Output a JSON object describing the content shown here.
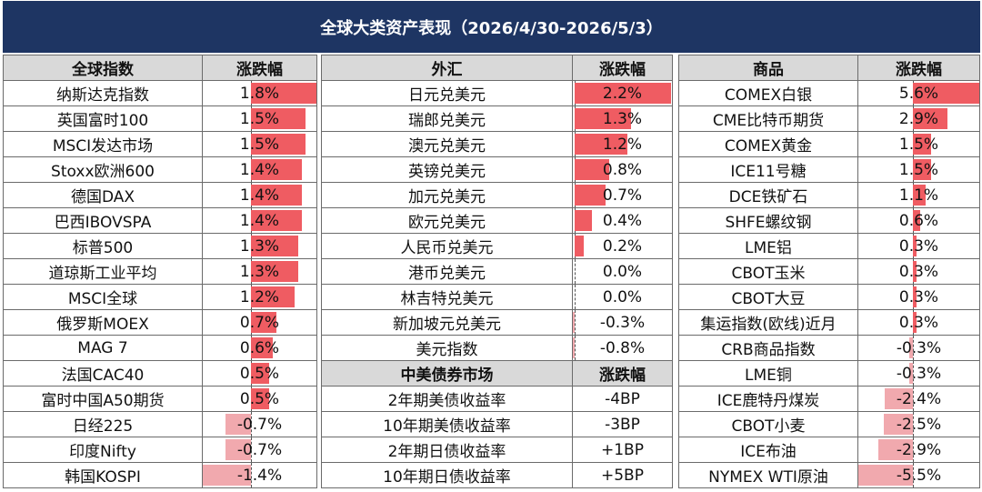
{
  "title": "全球大类资产表现（2026/4/30-2026/5/3）",
  "colors": {
    "header_bg": "#1e3563",
    "col_header_bg": "#d9d9d9",
    "positive_bar": "#ef5c62",
    "negative_bar": "#f1a9ae"
  },
  "left": {
    "col1": "全球指数",
    "col2": "涨跌幅",
    "rows": [
      {
        "name": "纳斯达克指数",
        "value": "1.8%",
        "pct": 1.8
      },
      {
        "name": "英国富时100",
        "value": "1.5%",
        "pct": 1.5
      },
      {
        "name": "MSCI发达市场",
        "value": "1.5%",
        "pct": 1.5
      },
      {
        "name": "Stoxx欧洲600",
        "value": "1.4%",
        "pct": 1.4
      },
      {
        "name": "德国DAX",
        "value": "1.4%",
        "pct": 1.4
      },
      {
        "name": "巴西IBOVSPA",
        "value": "1.4%",
        "pct": 1.4
      },
      {
        "name": "标普500",
        "value": "1.3%",
        "pct": 1.3
      },
      {
        "name": "道琼斯工业平均",
        "value": "1.3%",
        "pct": 1.3
      },
      {
        "name": "MSCI全球",
        "value": "1.2%",
        "pct": 1.2
      },
      {
        "name": "俄罗斯MOEX",
        "value": "0.7%",
        "pct": 0.7
      },
      {
        "name": "MAG 7",
        "value": "0.6%",
        "pct": 0.6
      },
      {
        "name": "法国CAC40",
        "value": "0.5%",
        "pct": 0.5
      },
      {
        "name": "富时中国A50期货",
        "value": "0.5%",
        "pct": 0.5
      },
      {
        "name": "日经225",
        "value": "-0.7%",
        "pct": -0.7
      },
      {
        "name": "印度Nifty",
        "value": "-0.7%",
        "pct": -0.7
      },
      {
        "name": "韩国KOSPI",
        "value": "-1.4%",
        "pct": -1.4
      }
    ]
  },
  "middle": {
    "col1": "外汇",
    "col2": "涨跌幅",
    "rows": [
      {
        "name": "日元兑美元",
        "value": "2.2%",
        "pct": 2.2
      },
      {
        "name": "瑞郎兑美元",
        "value": "1.3%",
        "pct": 1.3
      },
      {
        "name": "澳元兑美元",
        "value": "1.2%",
        "pct": 1.2
      },
      {
        "name": "英镑兑美元",
        "value": "0.8%",
        "pct": 0.8
      },
      {
        "name": "加元兑美元",
        "value": "0.7%",
        "pct": 0.7
      },
      {
        "name": "欧元兑美元",
        "value": "0.4%",
        "pct": 0.4
      },
      {
        "name": "人民币兑美元",
        "value": "0.2%",
        "pct": 0.2
      },
      {
        "name": "港币兑美元",
        "value": "0.0%",
        "pct": 0.0
      },
      {
        "name": "林吉特兑美元",
        "value": "0.0%",
        "pct": 0.0
      },
      {
        "name": "新加坡元兑美元",
        "value": "-0.3%",
        "pct": -0.3
      },
      {
        "name": "美元指数",
        "value": "-0.8%",
        "pct": -0.8
      }
    ],
    "bond_col1": "中美债券市场",
    "bond_col2": "涨跌幅",
    "bonds": [
      {
        "name": "2年期美债收益率",
        "value": "-4BP"
      },
      {
        "name": "10年期美债收益率",
        "value": "-3BP"
      },
      {
        "name": "2年期日债收益率",
        "value": "+1BP"
      },
      {
        "name": "10年期日债收益率",
        "value": "+5BP"
      }
    ]
  },
  "right": {
    "col1": "商品",
    "col2": "涨跌幅",
    "rows": [
      {
        "name": "COMEX白银",
        "value": "5.6%",
        "pct": 5.6
      },
      {
        "name": "CME比特币期货",
        "value": "2.9%",
        "pct": 2.9
      },
      {
        "name": "COMEX黄金",
        "value": "1.5%",
        "pct": 1.5
      },
      {
        "name": "ICE11号糖",
        "value": "1.5%",
        "pct": 1.5
      },
      {
        "name": "DCE铁矿石",
        "value": "1.1%",
        "pct": 1.1
      },
      {
        "name": "SHFE螺纹钢",
        "value": "0.6%",
        "pct": 0.6
      },
      {
        "name": "LME铝",
        "value": "0.3%",
        "pct": 0.3
      },
      {
        "name": "CBOT玉米",
        "value": "0.3%",
        "pct": 0.3
      },
      {
        "name": "CBOT大豆",
        "value": "0.3%",
        "pct": 0.3
      },
      {
        "name": "集运指数(欧线)近月",
        "value": "0.3%",
        "pct": 0.3
      },
      {
        "name": "CRB商品指数",
        "value": "-0.3%",
        "pct": -0.3
      },
      {
        "name": "LME铜",
        "value": "-0.3%",
        "pct": -0.3
      },
      {
        "name": "ICE鹿特丹煤炭",
        "value": "-2.4%",
        "pct": -2.4
      },
      {
        "name": "CBOT小麦",
        "value": "-2.5%",
        "pct": -2.5
      },
      {
        "name": "ICE布油",
        "value": "-2.9%",
        "pct": -2.9
      },
      {
        "name": "NYMEX WTI原油",
        "value": "-5.5%",
        "pct": -5.5
      }
    ]
  }
}
